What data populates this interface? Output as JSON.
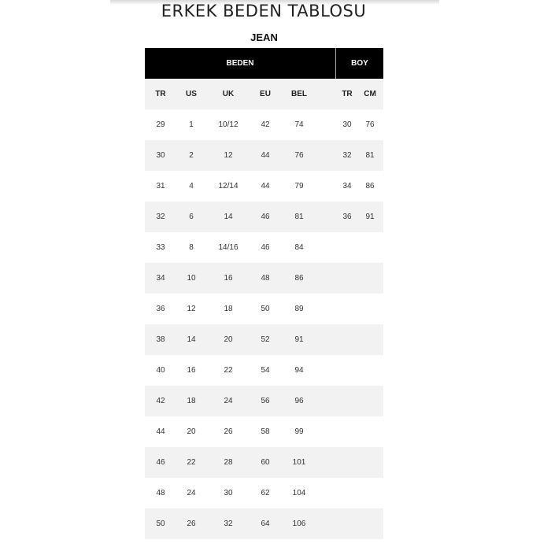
{
  "title": "ERKEK BEDEN TABLOSU",
  "subtitle": "JEAN",
  "group_headers": {
    "beden": "BEDEN",
    "boy": "BOY"
  },
  "columns": [
    "TR",
    "US",
    "UK",
    "EU",
    "BEL",
    "TR",
    "CM"
  ],
  "rows": [
    [
      "29",
      "1",
      "10/12",
      "42",
      "74",
      "30",
      "76"
    ],
    [
      "30",
      "2",
      "12",
      "44",
      "76",
      "32",
      "81"
    ],
    [
      "31",
      "4",
      "12/14",
      "44",
      "79",
      "34",
      "86"
    ],
    [
      "32",
      "6",
      "14",
      "46",
      "81",
      "36",
      "91"
    ],
    [
      "33",
      "8",
      "14/16",
      "46",
      "84",
      "",
      ""
    ],
    [
      "34",
      "10",
      "16",
      "48",
      "86",
      "",
      ""
    ],
    [
      "36",
      "12",
      "18",
      "50",
      "89",
      "",
      ""
    ],
    [
      "38",
      "14",
      "20",
      "52",
      "91",
      "",
      ""
    ],
    [
      "40",
      "16",
      "22",
      "54",
      "94",
      "",
      ""
    ],
    [
      "42",
      "18",
      "24",
      "56",
      "96",
      "",
      ""
    ],
    [
      "44",
      "20",
      "26",
      "58",
      "99",
      "",
      ""
    ],
    [
      "46",
      "22",
      "28",
      "60",
      "101",
      "",
      ""
    ],
    [
      "48",
      "24",
      "30",
      "62",
      "104",
      "",
      ""
    ],
    [
      "50",
      "26",
      "32",
      "64",
      "106",
      "",
      ""
    ]
  ]
}
